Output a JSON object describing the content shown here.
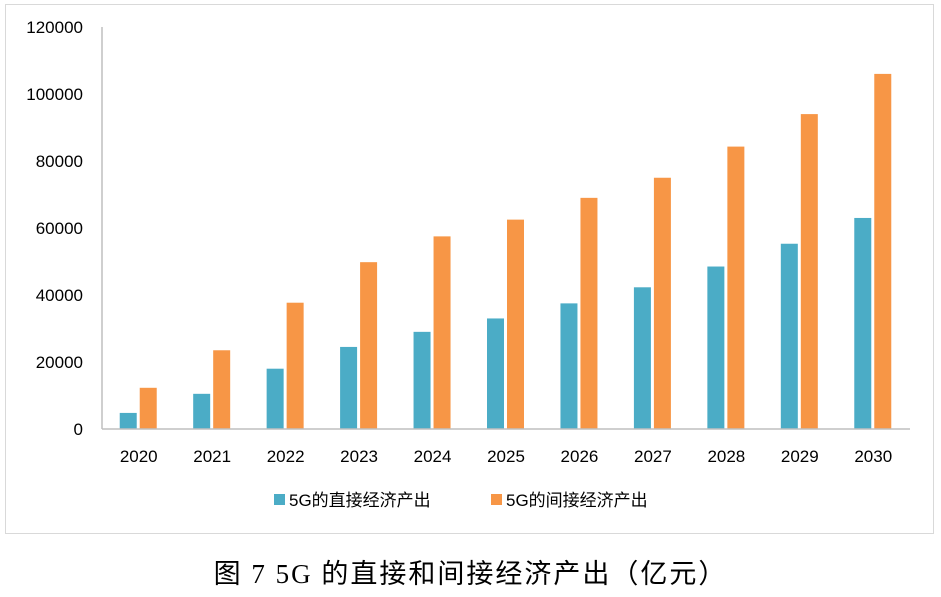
{
  "caption": "图 7 5G 的直接和间接经济产出（亿元）",
  "colors": {
    "direct": "#4bacc6",
    "indirect": "#f79646",
    "axis": "#bfbfbf",
    "frame": "#d9d9d9"
  },
  "chart_data": {
    "type": "bar",
    "title": "",
    "xlabel": "",
    "ylabel": "",
    "categories": [
      "2020",
      "2021",
      "2022",
      "2023",
      "2024",
      "2025",
      "2026",
      "2027",
      "2028",
      "2029",
      "2030"
    ],
    "series": [
      {
        "name": "5G的直接经济产出",
        "values": [
          4800,
          10500,
          18000,
          24500,
          29000,
          33000,
          37500,
          42300,
          48500,
          55300,
          63000
        ]
      },
      {
        "name": "5G的间接经济产出",
        "values": [
          12300,
          23500,
          37700,
          49800,
          57500,
          62500,
          69000,
          75000,
          84300,
          94000,
          106000
        ]
      }
    ],
    "ylim": [
      0,
      120000
    ],
    "yticks": [
      "0",
      "20000",
      "40000",
      "60000",
      "80000",
      "100000",
      "120000"
    ],
    "grid": false,
    "legend_position": "bottom"
  }
}
